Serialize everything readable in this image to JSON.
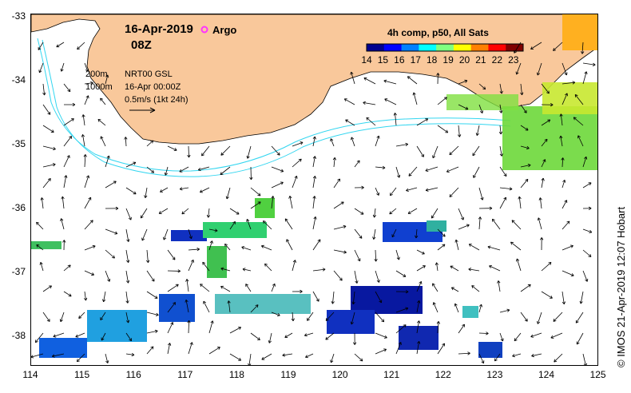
{
  "map": {
    "date_label": "16-Apr-2019",
    "time_label": "08Z",
    "argo_label": "Argo",
    "depth_200": "200m",
    "depth_1000": "1000m",
    "product_label": "NRT00 GSL",
    "product_time": "16-Apr 00:00Z",
    "vector_scale_label": "0.5m/s (1kt 24h)",
    "credit": "© IMOS 21-Apr-2019 12:07 Hobart",
    "land_color": "#f9c89b",
    "contour_color": "#33d6f0",
    "argo_color": "#ff33ff",
    "lat_ticks": [
      "-33",
      "-34",
      "-35",
      "-36",
      "-37",
      "-38"
    ],
    "lon_ticks": [
      "114",
      "115",
      "116",
      "117",
      "118",
      "119",
      "120",
      "121",
      "122",
      "123",
      "124",
      "125"
    ]
  },
  "colorbar": {
    "title": "4h comp, p50, All Sats",
    "ticks": [
      "14",
      "15",
      "16",
      "17",
      "18",
      "19",
      "20",
      "21",
      "22",
      "23"
    ],
    "min": 14,
    "max": 23.6,
    "colors": [
      "#00008f",
      "#0000ff",
      "#0080ff",
      "#00ffff",
      "#80ff80",
      "#ffff00",
      "#ff8000",
      "#ff0000",
      "#800000"
    ]
  }
}
